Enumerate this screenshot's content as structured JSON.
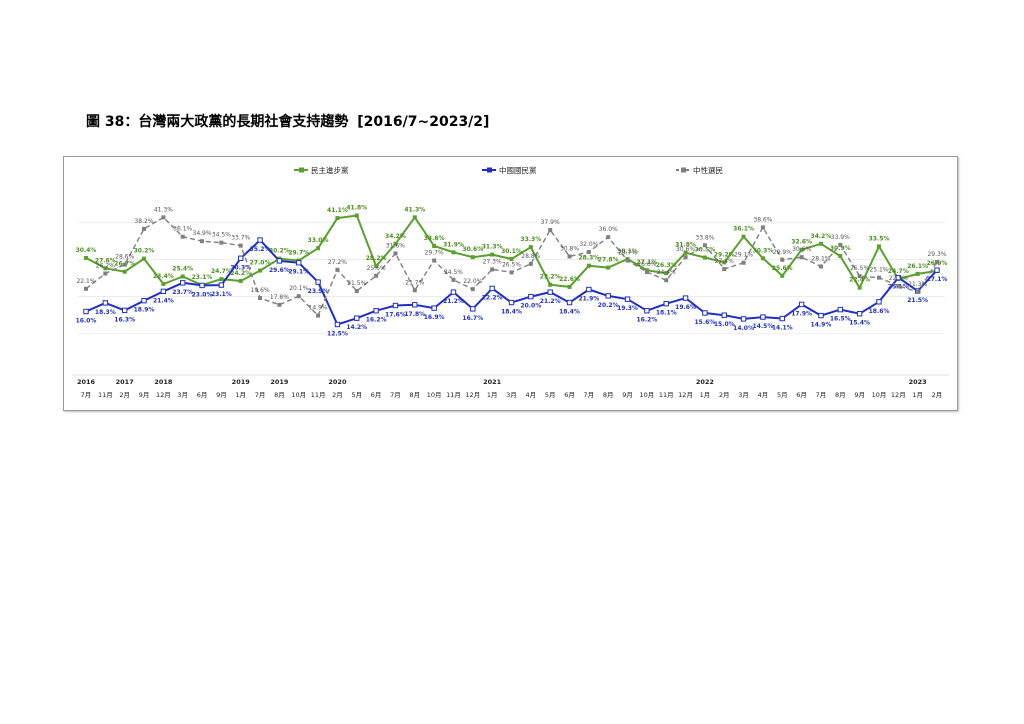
{
  "title": {
    "prefix": "圖 38：",
    "text": "台灣兩大政黨的長期社會支持趨勢",
    "range": "[2016/7~2023/2]"
  },
  "chart_data": {
    "type": "line",
    "x_months": [
      "7月",
      "11月",
      "2月",
      "9月",
      "12月",
      "3月",
      "6月",
      "9月",
      "1月",
      "7月",
      "8月",
      "10月",
      "11月",
      "2月",
      "5月",
      "6月",
      "7月",
      "8月",
      "10月",
      "11月",
      "12月",
      "1月",
      "3月",
      "4月",
      "5月",
      "6月",
      "7月",
      "8月",
      "9月",
      "10月",
      "11月",
      "12月",
      "1月",
      "2月",
      "3月",
      "4月",
      "5月",
      "6月",
      "7月",
      "8月",
      "9月",
      "10月",
      "12月",
      "1月",
      "2月"
    ],
    "x_years": [
      {
        "label": "2016",
        "index": 0
      },
      {
        "label": "2017",
        "index": 2
      },
      {
        "label": "2018",
        "index": 4
      },
      {
        "label": "2019",
        "index": 8
      },
      {
        "label": "2019",
        "index": 10
      },
      {
        "label": "2020",
        "index": 13
      },
      {
        "label": "2021",
        "index": 21
      },
      {
        "label": "2022",
        "index": 32
      },
      {
        "label": "2023",
        "index": 43
      }
    ],
    "ylim": [
      0,
      50
    ],
    "series": [
      {
        "name": "民主進步黨",
        "color": "#5aa02c",
        "dash": "none",
        "marker": "square",
        "values": [
          30.4,
          27.6,
          26.7,
          30.2,
          23.4,
          25.4,
          23.1,
          24.7,
          24.2,
          27.0,
          30.2,
          29.7,
          33.0,
          41.1,
          41.8,
          28.2,
          34.2,
          41.3,
          33.6,
          31.9,
          30.6,
          31.3,
          30.1,
          33.3,
          23.2,
          22.6,
          28.3,
          27.8,
          30.1,
          27.1,
          26.3,
          31.8,
          30.5,
          29.2,
          36.1,
          30.3,
          25.6,
          32.6,
          34.2,
          30.9,
          22.4,
          33.5,
          24.7,
          26.1,
          26.9
        ],
        "labels": [
          "30.4%",
          "27.6%",
          "26.7%",
          "30.2%",
          "23.4%",
          "25.4%",
          "23.1%",
          "24.7%",
          "24.2%",
          "27.0%",
          "30.2%",
          "29.7%",
          "33.0%",
          "41.1%",
          "41.8%",
          "28.2%",
          "34.2%",
          "41.3%",
          "33.6%",
          "31.9%",
          "30.6%",
          "31.3%",
          "30.1%",
          "33.3%",
          "23.2%",
          "22.6%",
          "28.3%",
          "27.8%",
          "30.1%",
          "27.1%",
          "26.3%",
          "31.8%",
          "30.5%",
          "29.2%",
          "36.1%",
          "30.3%",
          "25.6%",
          "32.6%",
          "34.2%",
          "30.9%",
          "22.4%",
          "33.5%",
          "24.7%",
          "26.1%",
          "26.9%"
        ]
      },
      {
        "name": "中國國民黨",
        "color": "#1f2fc4",
        "dash": "none",
        "marker": "diamond",
        "values": [
          16.0,
          18.3,
          16.3,
          18.9,
          21.4,
          23.7,
          23.0,
          23.1,
          30.3,
          35.2,
          29.6,
          29.1,
          23.9,
          12.5,
          14.2,
          16.2,
          17.6,
          17.8,
          16.9,
          21.2,
          16.7,
          22.2,
          18.4,
          20.0,
          21.2,
          18.4,
          21.9,
          20.2,
          19.3,
          16.2,
          18.1,
          19.6,
          15.6,
          15.0,
          14.0,
          14.5,
          14.1,
          17.9,
          14.9,
          16.5,
          15.4,
          18.6,
          25.1,
          21.5,
          27.1
        ],
        "labels": [
          "16.0%",
          "18.3%",
          "16.3%",
          "18.9%",
          "21.4%",
          "23.7%",
          "23.0%",
          "23.1%",
          "30.3%",
          "35.2%",
          "29.6%",
          "29.1%",
          "23.9%",
          "12.5%",
          "14.2%",
          "16.2%",
          "17.6%",
          "17.8%",
          "16.9%",
          "21.2%",
          "16.7%",
          "22.2%",
          "18.4%",
          "20.0%",
          "21.2%",
          "18.4%",
          "21.9%",
          "20.2%",
          "19.3%",
          "16.2%",
          "18.1%",
          "19.6%",
          "15.6%",
          "15.0%",
          "14.0%",
          "14.5%",
          "14.1%",
          "17.9%",
          "14.9%",
          "16.5%",
          "15.4%",
          "18.6%",
          "25.1%",
          "21.5%",
          "27.1%"
        ]
      },
      {
        "name": "中性選民",
        "color": "#7f7f7f",
        "dash": "5,3",
        "marker": "square",
        "values": [
          22.1,
          26.2,
          28.6,
          38.2,
          41.3,
          36.1,
          34.9,
          34.5,
          33.7,
          19.6,
          17.8,
          20.1,
          14.9,
          27.2,
          21.5,
          25.6,
          31.6,
          21.7,
          29.7,
          24.5,
          22.0,
          27.3,
          26.5,
          28.8,
          37.9,
          30.8,
          32.0,
          36.0,
          29.7,
          26.6,
          24.4,
          30.6,
          33.8,
          27.4,
          29.1,
          38.6,
          29.9,
          30.6,
          28.1,
          33.9,
          25.5,
          25.1,
          22.9,
          21.3,
          29.3
        ],
        "labels": [
          "22.1%",
          "26.2%",
          "28.6%",
          "38.2%",
          "41.3%",
          "36.1%",
          "34.9%",
          "34.5%",
          "33.7%",
          "19.6%",
          "17.8%",
          "20.1%",
          "14.9%",
          "27.2%",
          "21.5%",
          "25.6%",
          "31.6%",
          "21.7%",
          "29.7%",
          "24.5%",
          "22.0%",
          "27.3%",
          "26.5%",
          "28.8%",
          "37.9%",
          "30.8%",
          "32.0%",
          "36.0%",
          "29.7%",
          "26.6%",
          "24.4%",
          "30.6%",
          "33.8%",
          "27.4%",
          "29.1%",
          "38.6%",
          "29.9%",
          "30.6%",
          "28.1%",
          "33.9%",
          "25.5%",
          "25.1%",
          "22.9%",
          "21.3%",
          "29.3%"
        ]
      }
    ],
    "grid": true,
    "legend_position": "top"
  }
}
